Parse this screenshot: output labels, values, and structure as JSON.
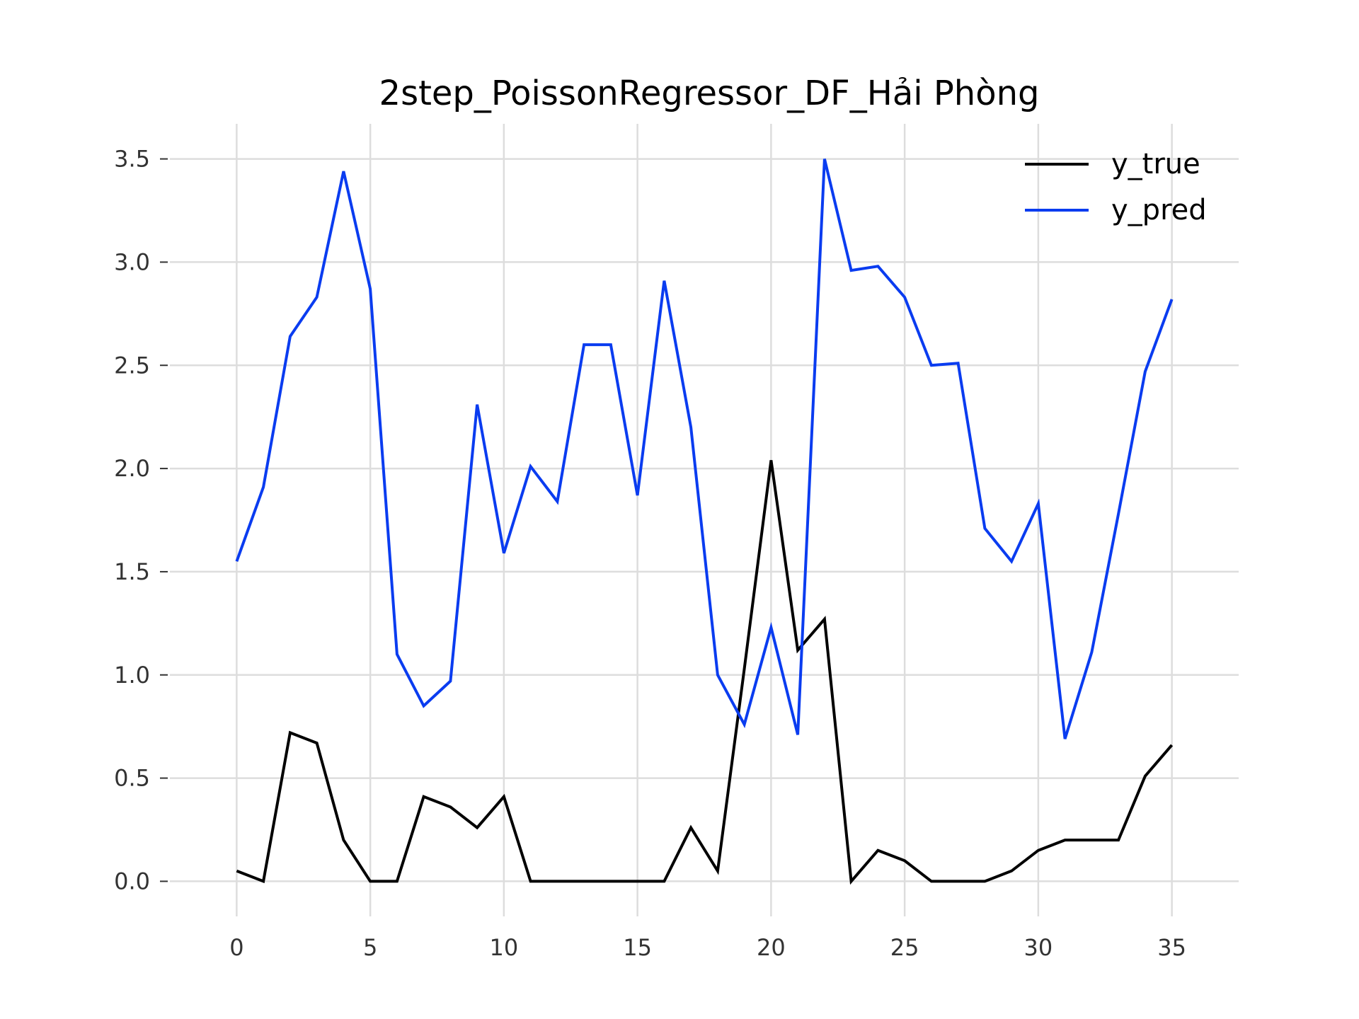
{
  "chart_data": {
    "type": "line",
    "title": "2step_PoissonRegressor_DF_Hải Phòng",
    "xlabel": "",
    "ylabel": "",
    "x": [
      0,
      1,
      2,
      3,
      4,
      5,
      6,
      7,
      8,
      9,
      10,
      11,
      12,
      13,
      14,
      15,
      16,
      17,
      18,
      19,
      20,
      21,
      22,
      23,
      24,
      25,
      26,
      27,
      28,
      29,
      30,
      31,
      32,
      33,
      34,
      35
    ],
    "xlim": [
      -2.5,
      37.5
    ],
    "ylim": [
      -0.17,
      3.67
    ],
    "xticks": [
      0,
      5,
      10,
      15,
      20,
      25,
      30,
      35
    ],
    "xtick_labels": [
      "0",
      "5",
      "10",
      "15",
      "20",
      "25",
      "30",
      "35"
    ],
    "yticks": [
      0.0,
      0.5,
      1.0,
      1.5,
      2.0,
      2.5,
      3.0,
      3.5
    ],
    "ytick_labels": [
      "0.0",
      "0.5",
      "1.0",
      "1.5",
      "2.0",
      "2.5",
      "3.0",
      "3.5"
    ],
    "grid": true,
    "legend_position": "top-right",
    "series": [
      {
        "name": "y_true",
        "color": "#000000",
        "values": [
          0.05,
          0.0,
          0.72,
          0.67,
          0.2,
          0.0,
          0.0,
          0.41,
          0.36,
          0.26,
          0.41,
          0.0,
          0.0,
          0.0,
          0.0,
          0.0,
          0.0,
          0.26,
          0.05,
          1.03,
          2.04,
          1.12,
          1.27,
          0.0,
          0.15,
          0.1,
          0.0,
          0.0,
          0.0,
          0.05,
          0.15,
          0.2,
          0.2,
          0.2,
          0.51,
          0.66
        ]
      },
      {
        "name": "y_pred",
        "color": "#0a3cf0",
        "values": [
          1.55,
          1.91,
          2.64,
          2.83,
          3.44,
          2.87,
          1.1,
          0.85,
          0.97,
          2.31,
          1.59,
          2.01,
          1.84,
          2.6,
          2.6,
          1.87,
          2.91,
          2.2,
          1.0,
          0.76,
          1.23,
          0.71,
          3.5,
          2.96,
          2.98,
          2.83,
          2.5,
          2.51,
          1.71,
          1.55,
          1.83,
          0.69,
          1.11,
          1.78,
          2.47,
          2.82
        ]
      }
    ]
  }
}
